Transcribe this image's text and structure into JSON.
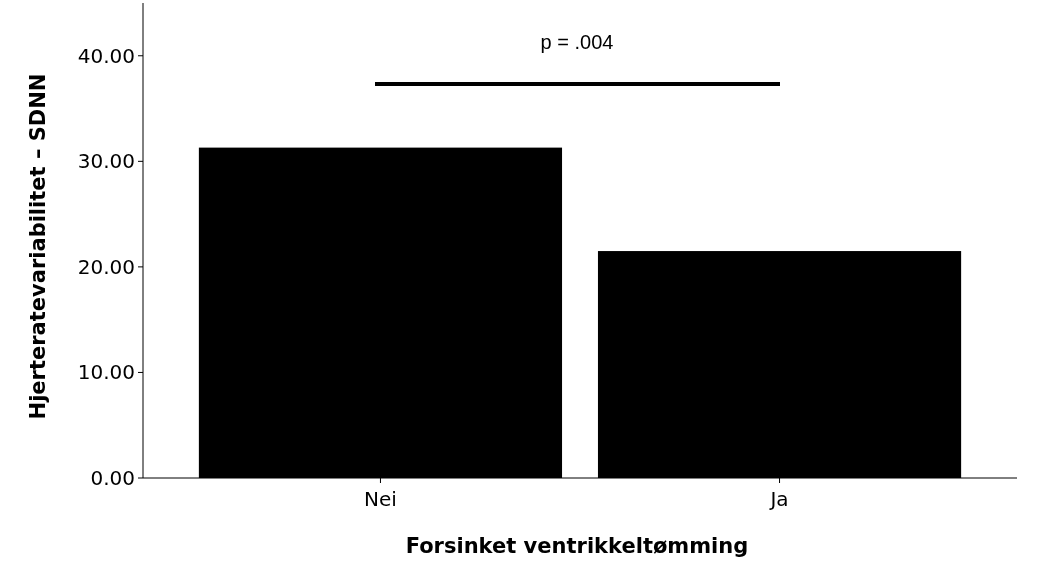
{
  "chart_data": {
    "type": "bar",
    "xlabel": "Forsinket ventrikkeltømming",
    "ylabel": "Hjerteratevariabilitet – SDNN",
    "categories": [
      "Nei",
      "Ja"
    ],
    "values": [
      31.3,
      21.5
    ],
    "color": "#000000",
    "ylim": [
      0,
      45
    ],
    "yticks": [
      {
        "value": 0,
        "label": "0.00"
      },
      {
        "value": 10,
        "label": "10.00"
      },
      {
        "value": 20,
        "label": "20.00"
      },
      {
        "value": 30,
        "label": "30.00"
      },
      {
        "value": 40,
        "label": "40.00"
      }
    ],
    "grid": false,
    "annotations": [
      "p = .004"
    ]
  }
}
